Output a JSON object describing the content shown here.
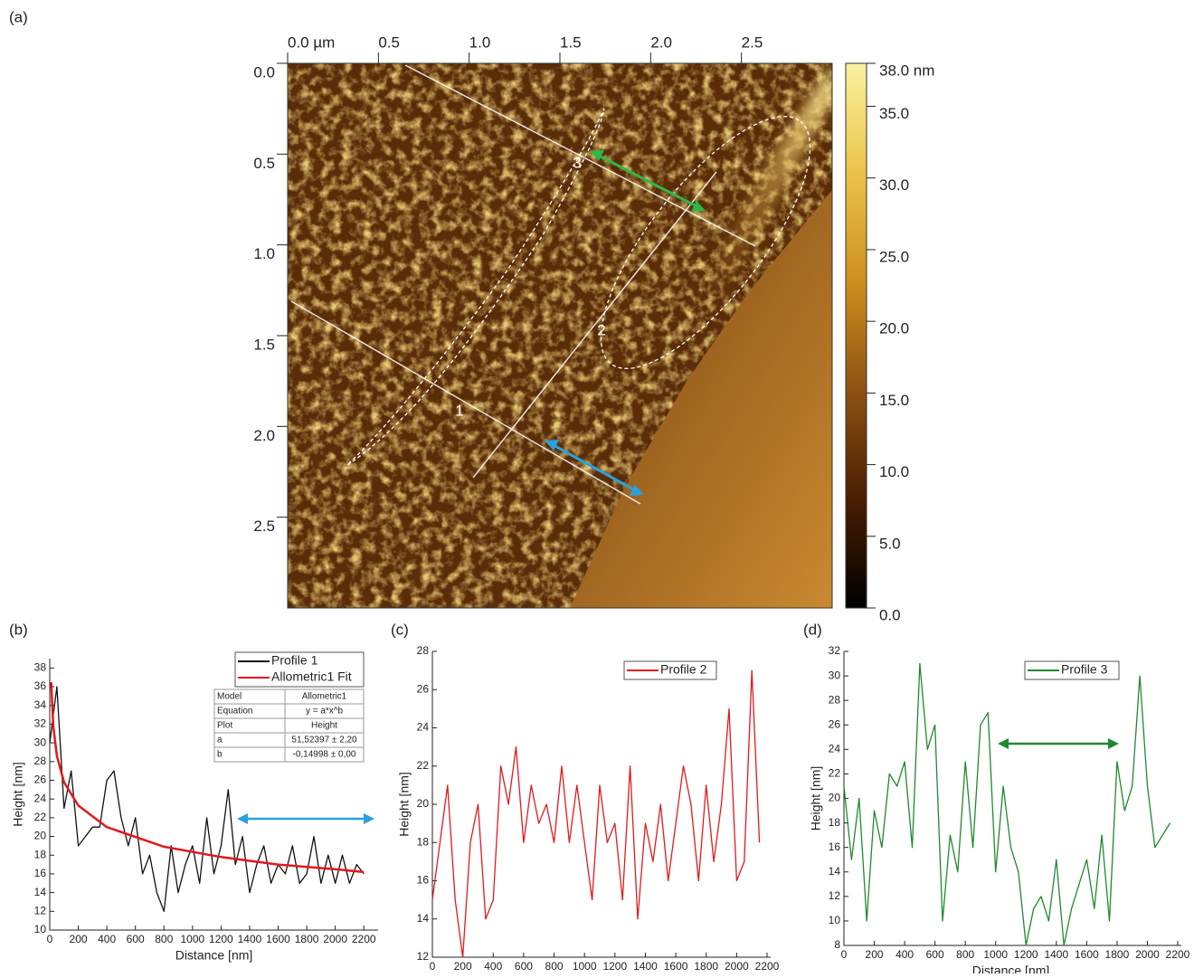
{
  "chart_data": [
    {
      "type": "image",
      "panel_label": "(a)",
      "xlim": [
        0,
        3
      ],
      "xticks": [
        {
          "value": 0,
          "label": "0.0 µm"
        },
        0.5,
        {
          "value": 1,
          "label": "1.0"
        },
        1.5,
        {
          "value": 2,
          "label": "2.0"
        },
        2.5
      ],
      "ylim": [
        0,
        3
      ],
      "yticks": [
        {
          "value": 0,
          "label": "0.0"
        },
        0.5,
        {
          "value": 1,
          "label": "1.0"
        },
        1.5,
        {
          "value": 2,
          "label": "2.0"
        },
        2.5
      ],
      "colorbar": {
        "lim": [
          0,
          38
        ],
        "ticks": [
          {
            "value": 38,
            "label": "38.0 nm"
          },
          {
            "value": 35,
            "label": "35.0"
          },
          {
            "value": 30,
            "label": "30.0"
          },
          {
            "value": 25,
            "label": "25.0"
          },
          {
            "value": 20,
            "label": "20.0"
          },
          {
            "value": 15,
            "label": "15.0"
          },
          {
            "value": 10,
            "label": "10.0"
          },
          {
            "value": 5,
            "label": "5.0"
          },
          {
            "value": 0,
            "label": "0.0"
          }
        ],
        "colormap": [
          "#000000",
          "#4a1e02",
          "#8f5212",
          "#cf8f1e",
          "#ecc349",
          "#fbf2a0"
        ]
      },
      "annotations": [
        "1",
        "2",
        "3"
      ]
    },
    {
      "type": "line",
      "panel_label": "(b)",
      "x_label": "Distance [nm]",
      "y_label": "Height [nm]",
      "xlim": [
        0,
        2300
      ],
      "xticks": [
        0,
        200,
        400,
        600,
        800,
        1000,
        1200,
        1400,
        1600,
        1800,
        2000,
        2200
      ],
      "ylim": [
        10,
        39
      ],
      "yticks": [
        10,
        12,
        14,
        16,
        18,
        20,
        22,
        24,
        26,
        28,
        30,
        32,
        34,
        36,
        38
      ],
      "series": [
        {
          "name": "Profile 1",
          "color": "#111111",
          "x": [
            0,
            50,
            100,
            150,
            200,
            250,
            300,
            350,
            400,
            450,
            500,
            550,
            600,
            650,
            700,
            750,
            800,
            850,
            900,
            950,
            1000,
            1050,
            1100,
            1150,
            1200,
            1250,
            1300,
            1350,
            1400,
            1450,
            1500,
            1550,
            1600,
            1650,
            1700,
            1750,
            1800,
            1850,
            1900,
            1950,
            2000,
            2050,
            2100,
            2150,
            2200
          ],
          "values": [
            30,
            36,
            23,
            27,
            19,
            20,
            21,
            21,
            26,
            27,
            22,
            19,
            22,
            16,
            18,
            14,
            12,
            19,
            14,
            17,
            19,
            15,
            22,
            16,
            19,
            25,
            17,
            20,
            14,
            17,
            19,
            15,
            17,
            16,
            19,
            15,
            16,
            20,
            15,
            18,
            15,
            18,
            15,
            17,
            16
          ]
        },
        {
          "name": "Allometric1 Fit",
          "color": "#e3191c",
          "x": [
            10,
            25,
            50,
            100,
            200,
            400,
            800,
            1200,
            1600,
            2000,
            2200
          ],
          "values": [
            36.5,
            31.8,
            28.6,
            25.8,
            23.3,
            21.0,
            18.9,
            17.8,
            17.0,
            16.5,
            16.2
          ]
        }
      ],
      "fit_table": [
        [
          "Model",
          "Allometric1"
        ],
        [
          "Equation",
          "y = a*x^b"
        ],
        [
          "Plot",
          "Height"
        ],
        [
          "a",
          "51,52397 ± 2,20"
        ],
        [
          "b",
          "-0,14998 ± 0,00"
        ]
      ]
    },
    {
      "type": "line",
      "panel_label": "(c)",
      "x_label": "Distance [nm]",
      "y_label": "Height [nm]",
      "xlim": [
        0,
        2200
      ],
      "xticks": [
        0,
        200,
        400,
        600,
        800,
        1000,
        1200,
        1400,
        1600,
        1800,
        2000,
        2200
      ],
      "ylim": [
        12,
        28
      ],
      "yticks": [
        12,
        14,
        16,
        18,
        20,
        22,
        24,
        26,
        28
      ],
      "series": [
        {
          "name": "Profile 2",
          "color": "#e3191c",
          "x": [
            0,
            50,
            100,
            150,
            200,
            250,
            300,
            350,
            400,
            450,
            500,
            550,
            600,
            650,
            700,
            750,
            800,
            850,
            900,
            950,
            1000,
            1050,
            1100,
            1150,
            1200,
            1250,
            1300,
            1350,
            1400,
            1450,
            1500,
            1550,
            1600,
            1650,
            1700,
            1750,
            1800,
            1850,
            1900,
            1950,
            2000,
            2050,
            2100,
            2150
          ],
          "values": [
            15,
            18,
            21,
            15,
            12,
            18,
            20,
            14,
            15,
            22,
            20,
            23,
            18,
            21,
            19,
            20,
            18,
            22,
            18,
            21,
            18,
            15,
            21,
            18,
            19,
            15,
            22,
            14,
            19,
            17,
            20,
            16,
            19,
            22,
            20,
            16,
            21,
            17,
            20,
            25,
            16,
            17,
            27,
            18
          ]
        }
      ]
    },
    {
      "type": "line",
      "panel_label": "(d)",
      "x_label": "Distance [nm]",
      "y_label": "Height [nm]",
      "xlim": [
        0,
        2200
      ],
      "xticks": [
        0,
        200,
        400,
        600,
        800,
        1000,
        1200,
        1400,
        1600,
        1800,
        2000,
        2200
      ],
      "ylim": [
        8,
        32
      ],
      "yticks": [
        8,
        10,
        12,
        14,
        16,
        18,
        20,
        22,
        24,
        26,
        28,
        30,
        32
      ],
      "series": [
        {
          "name": "Profile 3",
          "color": "#1e8a2e",
          "x": [
            0,
            50,
            100,
            150,
            200,
            250,
            300,
            350,
            400,
            450,
            500,
            550,
            600,
            650,
            700,
            750,
            800,
            850,
            900,
            950,
            1000,
            1050,
            1100,
            1150,
            1200,
            1250,
            1300,
            1350,
            1400,
            1450,
            1500,
            1550,
            1600,
            1650,
            1700,
            1750,
            1800,
            1850,
            1900,
            1950,
            2000,
            2050,
            2100,
            2150
          ],
          "values": [
            21,
            15,
            20,
            10,
            19,
            16,
            22,
            21,
            23,
            16,
            31,
            24,
            26,
            10,
            17,
            14,
            23,
            16,
            26,
            27,
            14,
            21,
            16,
            14,
            8,
            11,
            12,
            10,
            15,
            8,
            11,
            13,
            15,
            11,
            17,
            10,
            23,
            19,
            21,
            30,
            21,
            16,
            17,
            18
          ]
        }
      ]
    }
  ]
}
